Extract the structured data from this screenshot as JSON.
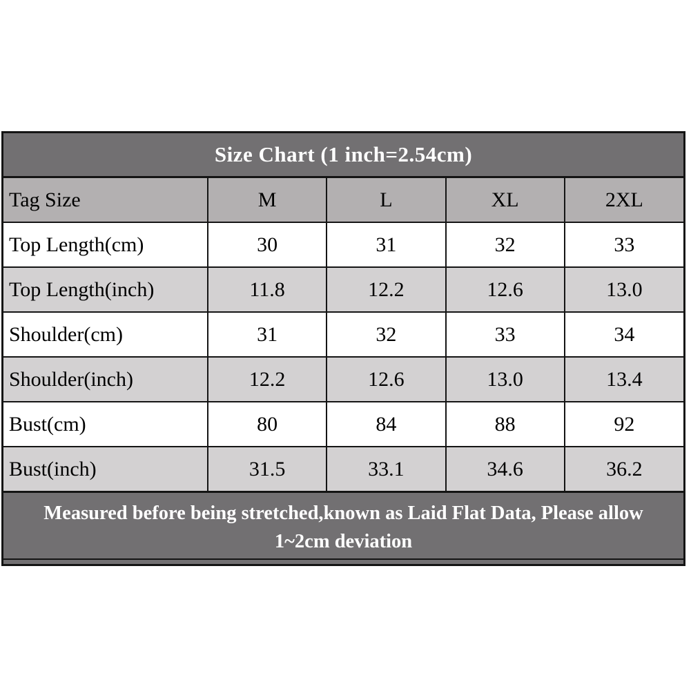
{
  "chart_data": {
    "type": "table",
    "title": "Size Chart (1 inch=2.54cm)",
    "columns": [
      "Tag Size",
      "M",
      "L",
      "XL",
      "2XL"
    ],
    "rows": [
      {
        "label": "Top Length(cm)",
        "values": [
          "30",
          "31",
          "32",
          "33"
        ]
      },
      {
        "label": "Top Length(inch)",
        "values": [
          "11.8",
          "12.2",
          "12.6",
          "13.0"
        ]
      },
      {
        "label": "Shoulder(cm)",
        "values": [
          "31",
          "32",
          "33",
          "34"
        ]
      },
      {
        "label": "Shoulder(inch)",
        "values": [
          "12.2",
          "12.6",
          "13.0",
          "13.4"
        ]
      },
      {
        "label": "Bust(cm)",
        "values": [
          "80",
          "84",
          "88",
          "92"
        ]
      },
      {
        "label": "Bust(inch)",
        "values": [
          "31.5",
          "33.1",
          "34.6",
          "36.2"
        ]
      }
    ],
    "footer_lines": [
      "Measured before being stretched,known as Laid Flat Data, Please allow",
      "1~2cm deviation"
    ],
    "layout_hints": {
      "grid": true,
      "legend": "none",
      "row_striping": "white / light-gray alternating"
    },
    "colors": {
      "title_bg": "#727072",
      "header_row_bg": "#b3b0b1",
      "row_bg": "#ffffff",
      "row_alt_bg": "#d3d1d2",
      "border": "#141414",
      "title_text": "#ffffff",
      "cell_text": "#000000"
    }
  }
}
